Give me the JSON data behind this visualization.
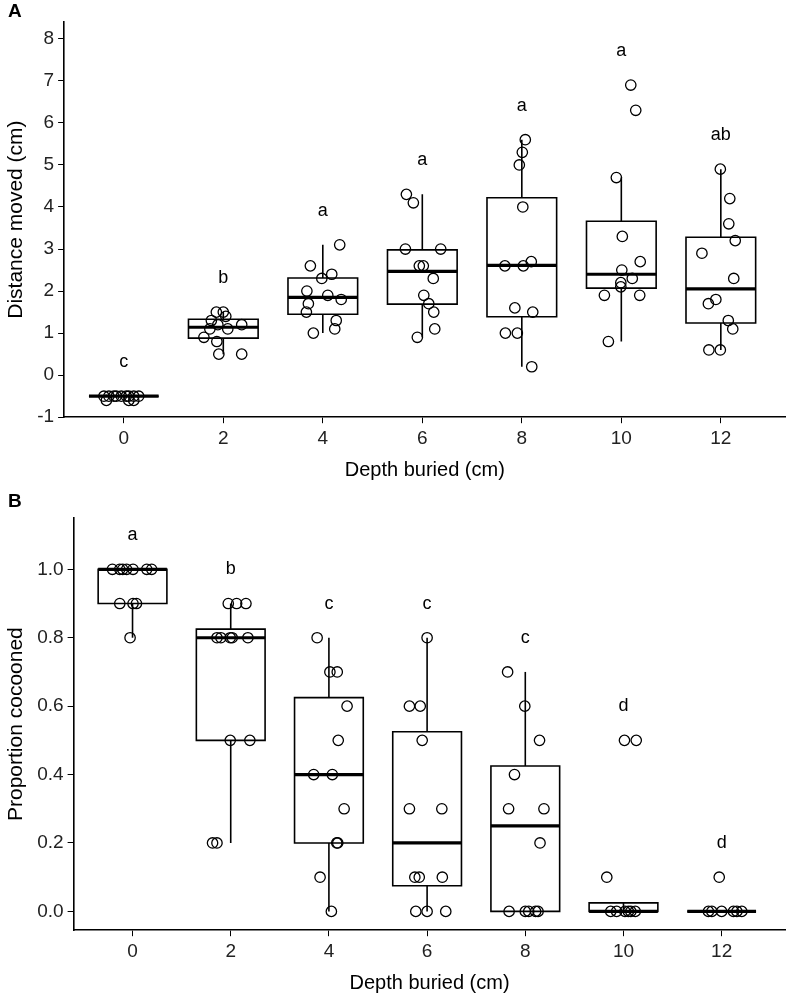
{
  "chart_data": [
    {
      "type": "box",
      "title": "A",
      "xlabel": "Depth buried (cm)",
      "ylabel": "Distance moved (cm)",
      "marker": "circle",
      "color": "#000000",
      "x": [
        0,
        2,
        4,
        6,
        8,
        10,
        12
      ],
      "xlim": [
        -1.2,
        13.3
      ],
      "xticks": [
        0,
        2,
        4,
        6,
        8,
        10,
        12
      ],
      "ylim": [
        -1,
        8.4
      ],
      "yticks": [
        -1,
        0,
        1,
        2,
        3,
        4,
        5,
        6,
        7,
        8
      ],
      "boxes": [
        {
          "low": -0.5,
          "q1": -0.5,
          "median": -0.5,
          "q3": -0.5,
          "high": -0.5
        },
        {
          "low": 0.5,
          "q1": 0.88,
          "median": 1.14,
          "q3": 1.33,
          "high": 1.5
        },
        {
          "low": 1.0,
          "q1": 1.45,
          "median": 1.85,
          "q3": 2.31,
          "high": 3.1
        },
        {
          "low": 0.9,
          "q1": 1.69,
          "median": 2.47,
          "q3": 2.98,
          "high": 4.3
        },
        {
          "low": 0.2,
          "q1": 1.39,
          "median": 2.61,
          "q3": 4.22,
          "high": 5.6
        },
        {
          "low": 0.8,
          "q1": 2.07,
          "median": 2.4,
          "q3": 3.66,
          "high": 4.7
        },
        {
          "low": 0.6,
          "q1": 1.24,
          "median": 2.05,
          "q3": 3.28,
          "high": 4.9
        }
      ],
      "series": [
        {
          "type": "scatter",
          "color": "#000000",
          "x": [
            -0.4,
            -0.3,
            -0.2,
            -0.15,
            -0.05,
            0.05,
            0.1,
            0.2,
            0.3,
            -0.35,
            0.1,
            0.2,
            1.86,
            2.0,
            2.05,
            1.76,
            1.89,
            2.37,
            2.09,
            1.73,
            1.61,
            1.87,
            1.91,
            2.37,
            4.34,
            3.75,
            4.18,
            3.98,
            3.68,
            4.1,
            4.37,
            3.71,
            3.67,
            4.27,
            3.81,
            4.24,
            5.68,
            5.82,
            5.66,
            6.37,
            5.94,
            6.02,
            6.22,
            6.03,
            6.13,
            6.23,
            6.25,
            5.9,
            8.07,
            8.01,
            7.95,
            8.02,
            7.66,
            8.03,
            8.19,
            7.86,
            8.22,
            7.67,
            7.91,
            8.2,
            10.19,
            10.29,
            9.9,
            10.02,
            10.38,
            10.01,
            10.22,
            9.99,
            9.99,
            9.66,
            10.37,
            9.74,
            11.99,
            12.18,
            12.16,
            12.29,
            11.62,
            12.26,
            11.9,
            11.75,
            12.15,
            12.24,
            11.76,
            11.99
          ],
          "values": [
            -0.5,
            -0.5,
            -0.5,
            -0.5,
            -0.5,
            -0.5,
            -0.5,
            -0.5,
            -0.5,
            -0.6,
            -0.6,
            -0.6,
            1.5,
            1.5,
            1.4,
            1.3,
            1.2,
            1.2,
            1.1,
            1.1,
            0.9,
            0.8,
            0.5,
            0.5,
            3.1,
            2.6,
            2.4,
            2.3,
            2.0,
            1.9,
            1.8,
            1.7,
            1.5,
            1.3,
            1.0,
            1.1,
            4.3,
            4.1,
            3.0,
            3.0,
            2.6,
            2.6,
            2.3,
            1.9,
            1.7,
            1.5,
            1.1,
            0.9,
            5.6,
            5.3,
            5.0,
            4.0,
            2.6,
            2.6,
            2.7,
            1.6,
            1.5,
            1.0,
            1.0,
            0.2,
            6.9,
            6.3,
            4.7,
            3.3,
            2.7,
            2.5,
            2.3,
            2.2,
            2.1,
            1.9,
            1.9,
            0.8,
            4.9,
            4.2,
            3.6,
            3.2,
            2.9,
            2.3,
            1.8,
            1.7,
            1.3,
            1.1,
            0.6,
            0.6
          ]
        }
      ],
      "annotations": [
        "c",
        "b",
        "a",
        "a",
        "a",
        "a",
        "ab"
      ]
    },
    {
      "type": "box",
      "title": "B",
      "xlabel": "Depth buried (cm)",
      "ylabel": "Proportion cocooned",
      "marker": "circle",
      "color": "#000000",
      "x": [
        0,
        2,
        4,
        6,
        8,
        10,
        12
      ],
      "xlim": [
        -1.2,
        13.3
      ],
      "xticks": [
        0,
        2,
        4,
        6,
        8,
        10,
        12
      ],
      "ylim": [
        -0.055,
        1.15
      ],
      "yticks": [
        {
          "value": 0,
          "label": "0.0"
        },
        {
          "value": 0.2,
          "label": "0.2"
        },
        {
          "value": 0.4,
          "label": "0.4"
        },
        {
          "value": 0.6,
          "label": "0.6"
        },
        {
          "value": 0.8,
          "label": "0.8"
        },
        {
          "value": 1,
          "label": "1.0"
        }
      ],
      "boxes": [
        {
          "low": 0.8,
          "q1": 0.9,
          "median": 1.0,
          "q3": 1.0,
          "high": 1.0
        },
        {
          "low": 0.2,
          "q1": 0.5,
          "median": 0.8,
          "q3": 0.825,
          "high": 0.9
        },
        {
          "low": 0.0,
          "q1": 0.2,
          "median": 0.4,
          "q3": 0.625,
          "high": 0.8
        },
        {
          "low": 0.0,
          "q1": 0.075,
          "median": 0.2,
          "q3": 0.525,
          "high": 0.8
        },
        {
          "low": 0.0,
          "q1": 0.0,
          "median": 0.25,
          "q3": 0.425,
          "high": 0.7
        },
        {
          "low": 0.0,
          "q1": 0.0,
          "median": 0.0,
          "q3": 0.025,
          "high": 0.0
        },
        {
          "low": 0.0,
          "q1": 0.0,
          "median": 0.0,
          "q3": 0.0,
          "high": 0.0
        }
      ],
      "series": [
        {
          "type": "scatter",
          "color": "#000000",
          "x": [
            -0.41,
            -0.26,
            -0.2,
            -0.12,
            0.01,
            0.29,
            0.39,
            -0.26,
            0.01,
            0.08,
            -0.05,
            1.95,
            2.12,
            2.31,
            1.72,
            1.8,
            1.99,
            2.03,
            2.35,
            1.99,
            2.39,
            1.63,
            1.72,
            3.76,
            4.02,
            4.17,
            4.37,
            4.19,
            3.69,
            4.07,
            4.31,
            4.16,
            4.18,
            3.82,
            4.05,
            6.0,
            5.64,
            5.86,
            5.9,
            5.64,
            6.3,
            5.75,
            5.84,
            6.31,
            5.77,
            6.0,
            6.38,
            7.64,
            7.99,
            8.29,
            7.78,
            7.66,
            8.38,
            8.3,
            7.67,
            8.0,
            8.07,
            8.21,
            8.26,
            10.02,
            10.26,
            9.66,
            9.74,
            9.86,
            10.03,
            10.1,
            10.15,
            10.24,
            11.95,
            11.73,
            11.8,
            12.0,
            12.24,
            12.31,
            12.41
          ],
          "values": [
            1.0,
            1.0,
            1.0,
            1.0,
            1.0,
            1.0,
            1.0,
            0.9,
            0.9,
            0.9,
            0.8,
            0.9,
            0.9,
            0.9,
            0.8,
            0.8,
            0.8,
            0.8,
            0.8,
            0.5,
            0.5,
            0.2,
            0.2,
            0.8,
            0.7,
            0.7,
            0.6,
            0.5,
            0.4,
            0.4,
            0.3,
            0.2,
            0.2,
            0.1,
            0.0,
            0.8,
            0.6,
            0.6,
            0.5,
            0.3,
            0.3,
            0.1,
            0.1,
            0.1,
            0.0,
            0.0,
            0.0,
            0.7,
            0.6,
            0.5,
            0.4,
            0.3,
            0.3,
            0.2,
            0.0,
            0.0,
            0.0,
            0.0,
            0.0,
            0.5,
            0.5,
            0.1,
            0.0,
            0.0,
            0.0,
            0.0,
            0.0,
            0.0,
            0.1,
            0.0,
            0.0,
            0.0,
            0.0,
            0.0,
            0.0
          ]
        }
      ],
      "annotations": [
        "a",
        "b",
        "c",
        "c",
        "c",
        "d",
        "d"
      ]
    }
  ]
}
